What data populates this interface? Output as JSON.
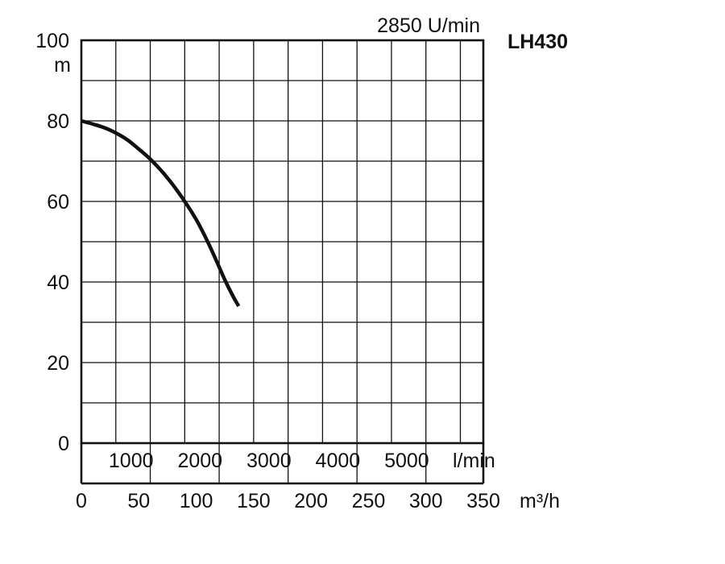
{
  "chart_data": {
    "type": "line",
    "title": "LH430",
    "subtitle": "2850 U/min",
    "ylabel": "m",
    "xlabel_lmin": "l/min",
    "xlabel_m3h": "m³/h",
    "ylim": [
      0,
      100
    ],
    "xlim_m3h": [
      0,
      350
    ],
    "xlim_lmin": [
      0,
      5833.3
    ],
    "grid": true,
    "y_ticks": [
      "0",
      "20",
      "40",
      "60",
      "80",
      "100"
    ],
    "y_tick_values": [
      0,
      20,
      40,
      60,
      80,
      100
    ],
    "x_ticks_lmin": [
      "1000",
      "2000",
      "3000",
      "4000",
      "5000"
    ],
    "x_tick_values_lmin": [
      1000,
      2000,
      3000,
      4000,
      5000
    ],
    "x_ticks_m3h": [
      "0",
      "50",
      "100",
      "150",
      "200",
      "250",
      "300",
      "350"
    ],
    "x_tick_values_m3h": [
      0,
      50,
      100,
      150,
      200,
      250,
      300,
      350
    ],
    "series": [
      {
        "x": [
          0,
          10,
          20,
          30,
          40,
          50,
          60,
          70,
          80,
          90,
          100,
          110,
          118,
          125,
          132,
          137
        ],
        "y": [
          80,
          79.2,
          78.3,
          77,
          75.3,
          73,
          70.5,
          67.5,
          64,
          60,
          55.5,
          50,
          45,
          40.5,
          36.5,
          34
        ],
        "color": "#111111"
      }
    ]
  }
}
